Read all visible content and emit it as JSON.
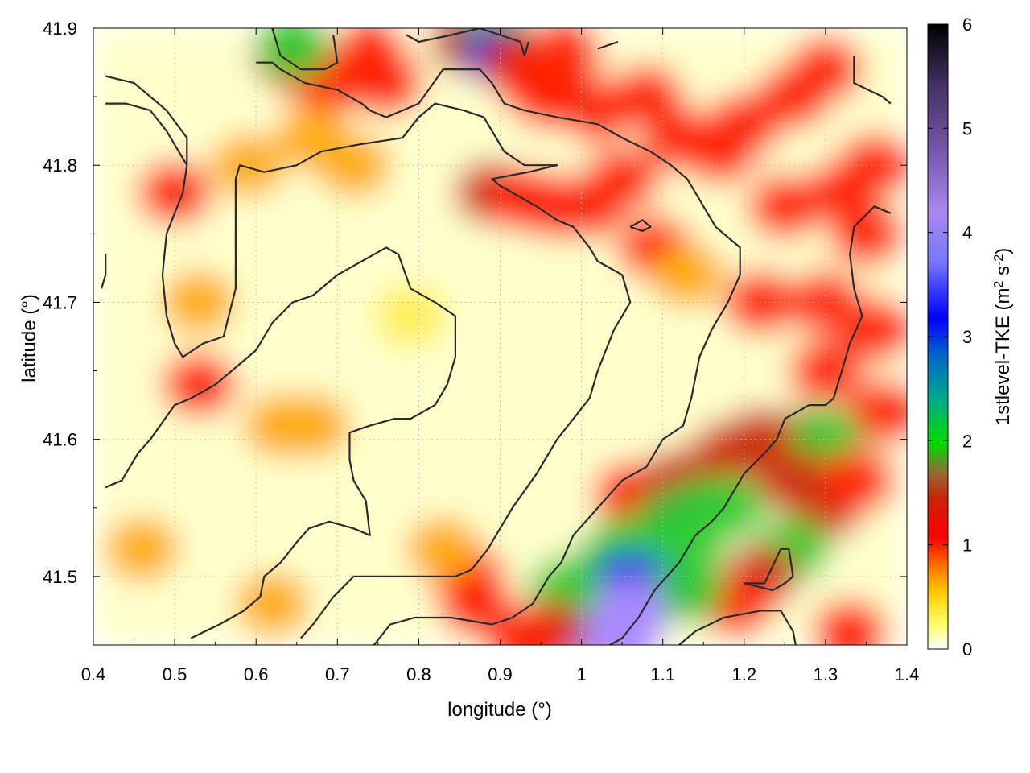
{
  "chart_data": {
    "type": "heatmap",
    "title": "",
    "xlabel": "longitude (°)",
    "ylabel": "latitude (°)",
    "xlim": [
      0.4,
      1.4
    ],
    "ylim": [
      41.45,
      41.9
    ],
    "x_ticks": [
      "0.4",
      "0.5",
      "0.6",
      "0.7",
      "0.8",
      "0.9",
      "1",
      "1.1",
      "1.2",
      "1.3",
      "1.4"
    ],
    "y_ticks": [
      "41.5",
      "41.6",
      "41.7",
      "41.8",
      "41.9"
    ],
    "colorbar": {
      "label_main": "1stlevel-TKE (m",
      "label_sup1": "2",
      "label_mid": " s",
      "label_sup2": "-2",
      "label_end": ")",
      "range": [
        0,
        6
      ],
      "ticks": [
        "0",
        "1",
        "2",
        "3",
        "4",
        "5",
        "6"
      ],
      "colors": [
        "#ffffff",
        "#ffff00",
        "#ff9900",
        "#ff0000",
        "#cc3300",
        "#996633",
        "#00cc00",
        "#00cc66",
        "#0066cc",
        "#0000ff",
        "#6666ff",
        "#aa88ff",
        "#7755aa",
        "#443366",
        "#000000"
      ]
    },
    "grid": true,
    "contours": [
      [
        [
          0.415,
          41.865
        ],
        [
          0.45,
          41.86
        ],
        [
          0.49,
          41.84
        ],
        [
          0.515,
          41.82
        ],
        [
          0.515,
          41.8
        ],
        [
          0.51,
          41.78
        ],
        [
          0.49,
          41.75
        ],
        [
          0.485,
          41.72
        ],
        [
          0.49,
          41.69
        ],
        [
          0.5,
          41.67
        ],
        [
          0.51,
          41.66
        ],
        [
          0.535,
          41.67
        ],
        [
          0.56,
          41.675
        ],
        [
          0.575,
          41.71
        ],
        [
          0.575,
          41.75
        ],
        [
          0.575,
          41.79
        ],
        [
          0.58,
          41.8
        ],
        [
          0.61,
          41.795
        ],
        [
          0.65,
          41.8
        ],
        [
          0.68,
          41.81
        ],
        [
          0.725,
          41.815
        ],
        [
          0.78,
          41.82
        ],
        [
          0.8,
          41.835
        ],
        [
          0.82,
          41.845
        ],
        [
          0.855,
          41.84
        ],
        [
          0.88,
          41.835
        ],
        [
          0.905,
          41.81
        ],
        [
          0.93,
          41.8
        ],
        [
          0.97,
          41.8
        ],
        [
          0.935,
          41.795
        ],
        [
          0.89,
          41.79
        ],
        [
          0.9,
          41.785
        ],
        [
          0.945,
          41.77
        ],
        [
          0.97,
          41.76
        ],
        [
          0.99,
          41.755
        ],
        [
          1.01,
          41.74
        ],
        [
          1.02,
          41.73
        ],
        [
          1.05,
          41.72
        ],
        [
          1.06,
          41.7
        ],
        [
          1.04,
          41.68
        ],
        [
          1.02,
          41.65
        ],
        [
          1.01,
          41.63
        ],
        [
          0.97,
          41.6
        ],
        [
          0.945,
          41.575
        ],
        [
          0.915,
          41.55
        ],
        [
          0.885,
          41.52
        ],
        [
          0.865,
          41.505
        ],
        [
          0.845,
          41.5
        ],
        [
          0.8,
          41.5
        ],
        [
          0.75,
          41.5
        ],
        [
          0.72,
          41.5
        ],
        [
          0.695,
          41.485
        ],
        [
          0.67,
          41.465
        ],
        [
          0.655,
          41.455
        ]
      ],
      [
        [
          0.415,
          41.845
        ],
        [
          0.44,
          41.845
        ],
        [
          0.47,
          41.84
        ],
        [
          0.49,
          41.825
        ],
        [
          0.515,
          41.8
        ]
      ],
      [
        [
          0.62,
          41.9
        ],
        [
          0.63,
          41.88
        ],
        [
          0.655,
          41.87
        ],
        [
          0.685,
          41.87
        ],
        [
          0.7,
          41.875
        ],
        [
          0.695,
          41.895
        ]
      ],
      [
        [
          0.785,
          41.895
        ],
        [
          0.8,
          41.89
        ],
        [
          0.84,
          41.895
        ],
        [
          0.875,
          41.9
        ],
        [
          0.9,
          41.895
        ],
        [
          0.925,
          41.89
        ],
        [
          0.93,
          41.88
        ],
        [
          0.935,
          41.89
        ]
      ],
      [
        [
          1.02,
          41.885
        ],
        [
          1.045,
          41.89
        ]
      ],
      [
        [
          0.6,
          41.875
        ],
        [
          0.62,
          41.875
        ],
        [
          0.63,
          41.87
        ],
        [
          0.645,
          41.865
        ],
        [
          0.66,
          41.86
        ],
        [
          0.7,
          41.855
        ],
        [
          0.73,
          41.845
        ],
        [
          0.74,
          41.84
        ],
        [
          0.76,
          41.835
        ],
        [
          0.78,
          41.84
        ],
        [
          0.8,
          41.845
        ],
        [
          0.83,
          41.87
        ],
        [
          0.855,
          41.87
        ],
        [
          0.875,
          41.87
        ],
        [
          0.89,
          41.86
        ],
        [
          0.905,
          41.845
        ],
        [
          0.93,
          41.84
        ],
        [
          0.97,
          41.835
        ],
        [
          1.02,
          41.83
        ],
        [
          1.05,
          41.82
        ],
        [
          1.085,
          41.81
        ],
        [
          1.11,
          41.8
        ],
        [
          1.13,
          41.79
        ],
        [
          1.15,
          41.77
        ],
        [
          1.165,
          41.755
        ],
        [
          1.195,
          41.74
        ],
        [
          1.195,
          41.72
        ],
        [
          1.18,
          41.7
        ],
        [
          1.16,
          41.68
        ],
        [
          1.145,
          41.66
        ],
        [
          1.135,
          41.63
        ],
        [
          1.125,
          41.61
        ],
        [
          1.1,
          41.6
        ],
        [
          1.08,
          41.58
        ],
        [
          1.05,
          41.57
        ],
        [
          1.02,
          41.55
        ],
        [
          0.99,
          41.53
        ],
        [
          0.975,
          41.51
        ],
        [
          0.96,
          41.5
        ],
        [
          0.94,
          41.48
        ],
        [
          0.915,
          41.47
        ],
        [
          0.89,
          41.465
        ],
        [
          0.84,
          41.47
        ],
        [
          0.795,
          41.47
        ],
        [
          0.765,
          41.465
        ],
        [
          0.745,
          41.45
        ]
      ],
      [
        [
          1.335,
          41.88
        ],
        [
          1.335,
          41.86
        ],
        [
          1.37,
          41.85
        ],
        [
          1.38,
          41.845
        ]
      ],
      [
        [
          0.415,
          41.565
        ],
        [
          0.435,
          41.57
        ],
        [
          0.445,
          41.58
        ],
        [
          0.455,
          41.59
        ],
        [
          0.47,
          41.6
        ],
        [
          0.5,
          41.625
        ],
        [
          0.52,
          41.63
        ],
        [
          0.55,
          41.64
        ],
        [
          0.57,
          41.65
        ],
        [
          0.6,
          41.665
        ],
        [
          0.62,
          41.685
        ],
        [
          0.645,
          41.7
        ],
        [
          0.67,
          41.705
        ],
        [
          0.7,
          41.72
        ],
        [
          0.73,
          41.73
        ],
        [
          0.76,
          41.74
        ],
        [
          0.775,
          41.735
        ],
        [
          0.79,
          41.71
        ],
        [
          0.82,
          41.7
        ],
        [
          0.845,
          41.69
        ],
        [
          0.845,
          41.66
        ],
        [
          0.835,
          41.64
        ],
        [
          0.82,
          41.625
        ],
        [
          0.79,
          41.615
        ],
        [
          0.77,
          41.615
        ],
        [
          0.74,
          41.61
        ],
        [
          0.715,
          41.605
        ],
        [
          0.715,
          41.585
        ],
        [
          0.72,
          41.57
        ],
        [
          0.735,
          41.555
        ],
        [
          0.74,
          41.53
        ],
        [
          0.72,
          41.535
        ],
        [
          0.69,
          41.54
        ],
        [
          0.665,
          41.535
        ],
        [
          0.65,
          41.525
        ],
        [
          0.63,
          41.51
        ],
        [
          0.61,
          41.5
        ],
        [
          0.605,
          41.485
        ],
        [
          0.585,
          41.475
        ],
        [
          0.57,
          41.47
        ],
        [
          0.555,
          41.465
        ],
        [
          0.52,
          41.455
        ]
      ],
      [
        [
          0.415,
          41.735
        ],
        [
          0.415,
          41.72
        ],
        [
          0.41,
          41.71
        ]
      ],
      [
        [
          1.06,
          41.755
        ],
        [
          1.075,
          41.76
        ],
        [
          1.085,
          41.755
        ],
        [
          1.075,
          41.752
        ],
        [
          1.06,
          41.755
        ]
      ],
      [
        [
          1.38,
          41.765
        ],
        [
          1.36,
          41.77
        ],
        [
          1.335,
          41.755
        ],
        [
          1.33,
          41.735
        ],
        [
          1.335,
          41.71
        ],
        [
          1.345,
          41.69
        ],
        [
          1.33,
          41.67
        ],
        [
          1.32,
          41.65
        ],
        [
          1.31,
          41.63
        ],
        [
          1.3,
          41.625
        ],
        [
          1.28,
          41.625
        ],
        [
          1.25,
          41.615
        ],
        [
          1.24,
          41.6
        ],
        [
          1.225,
          41.59
        ],
        [
          1.2,
          41.575
        ],
        [
          1.19,
          41.565
        ],
        [
          1.175,
          41.55
        ],
        [
          1.16,
          41.54
        ],
        [
          1.14,
          41.53
        ],
        [
          1.12,
          41.51
        ],
        [
          1.09,
          41.49
        ],
        [
          1.07,
          41.47
        ],
        [
          1.05,
          41.455
        ],
        [
          1.02,
          41.445
        ]
      ],
      [
        [
          1.2,
          41.495
        ],
        [
          1.225,
          41.495
        ],
        [
          1.245,
          41.52
        ],
        [
          1.255,
          41.52
        ],
        [
          1.26,
          41.5
        ],
        [
          1.25,
          41.495
        ],
        [
          1.235,
          41.49
        ],
        [
          1.2,
          41.495
        ]
      ],
      [
        [
          1.11,
          41.445
        ],
        [
          1.14,
          41.46
        ],
        [
          1.175,
          41.47
        ],
        [
          1.22,
          41.475
        ],
        [
          1.245,
          41.475
        ],
        [
          1.26,
          41.46
        ],
        [
          1.265,
          41.445
        ]
      ],
      [
        [
          1.32,
          41.445
        ],
        [
          1.325,
          41.45
        ]
      ]
    ],
    "tke_blobs": [
      {
        "x": 0.64,
        "y": 41.88,
        "v": 1.6
      },
      {
        "x": 0.66,
        "y": 41.87,
        "v": 1.2
      },
      {
        "x": 0.69,
        "y": 41.86,
        "v": 1.0
      },
      {
        "x": 0.645,
        "y": 41.885,
        "v": 2.0
      },
      {
        "x": 0.74,
        "y": 41.88,
        "v": 1.0
      },
      {
        "x": 0.76,
        "y": 41.86,
        "v": 0.8
      },
      {
        "x": 0.86,
        "y": 41.89,
        "v": 1.4
      },
      {
        "x": 0.895,
        "y": 41.89,
        "v": 2.2
      },
      {
        "x": 0.9,
        "y": 41.88,
        "v": 3.0
      },
      {
        "x": 0.92,
        "y": 41.875,
        "v": 1.6
      },
      {
        "x": 0.94,
        "y": 41.86,
        "v": 1.2
      },
      {
        "x": 0.96,
        "y": 41.85,
        "v": 1.0
      },
      {
        "x": 0.98,
        "y": 41.88,
        "v": 0.9
      },
      {
        "x": 1.02,
        "y": 41.84,
        "v": 1.1
      },
      {
        "x": 1.08,
        "y": 41.85,
        "v": 1.0
      },
      {
        "x": 1.12,
        "y": 41.82,
        "v": 1.1
      },
      {
        "x": 1.17,
        "y": 41.81,
        "v": 1.2
      },
      {
        "x": 1.2,
        "y": 41.83,
        "v": 1.0
      },
      {
        "x": 1.26,
        "y": 41.85,
        "v": 1.0
      },
      {
        "x": 1.3,
        "y": 41.87,
        "v": 1.1
      },
      {
        "x": 1.36,
        "y": 41.8,
        "v": 1.1
      },
      {
        "x": 1.35,
        "y": 41.75,
        "v": 1.2
      },
      {
        "x": 1.32,
        "y": 41.78,
        "v": 1.0
      },
      {
        "x": 1.25,
        "y": 41.77,
        "v": 0.9
      },
      {
        "x": 1.22,
        "y": 41.7,
        "v": 1.0
      },
      {
        "x": 1.3,
        "y": 41.7,
        "v": 1.2
      },
      {
        "x": 1.36,
        "y": 41.68,
        "v": 1.1
      },
      {
        "x": 1.3,
        "y": 41.65,
        "v": 1.0
      },
      {
        "x": 1.37,
        "y": 41.62,
        "v": 1.0
      },
      {
        "x": 0.89,
        "y": 41.78,
        "v": 1.3
      },
      {
        "x": 0.93,
        "y": 41.775,
        "v": 1.2
      },
      {
        "x": 0.97,
        "y": 41.77,
        "v": 1.0
      },
      {
        "x": 1.01,
        "y": 41.77,
        "v": 0.9
      },
      {
        "x": 1.09,
        "y": 41.74,
        "v": 0.9
      },
      {
        "x": 1.13,
        "y": 41.72,
        "v": 0.7
      },
      {
        "x": 1.05,
        "y": 41.79,
        "v": 0.8
      },
      {
        "x": 0.5,
        "y": 41.78,
        "v": 0.8
      },
      {
        "x": 0.53,
        "y": 41.7,
        "v": 0.7
      },
      {
        "x": 0.53,
        "y": 41.64,
        "v": 0.9
      },
      {
        "x": 0.59,
        "y": 41.8,
        "v": 0.6
      },
      {
        "x": 0.67,
        "y": 41.82,
        "v": 0.7
      },
      {
        "x": 0.72,
        "y": 41.8,
        "v": 0.6
      },
      {
        "x": 0.86,
        "y": 41.5,
        "v": 1.1
      },
      {
        "x": 0.87,
        "y": 41.48,
        "v": 1.0
      },
      {
        "x": 0.83,
        "y": 41.52,
        "v": 0.7
      },
      {
        "x": 1.06,
        "y": 41.56,
        "v": 1.2
      },
      {
        "x": 1.12,
        "y": 41.57,
        "v": 1.4
      },
      {
        "x": 1.18,
        "y": 41.59,
        "v": 1.3
      },
      {
        "x": 1.22,
        "y": 41.6,
        "v": 1.4
      },
      {
        "x": 1.27,
        "y": 41.6,
        "v": 1.5
      },
      {
        "x": 1.3,
        "y": 41.6,
        "v": 1.9
      },
      {
        "x": 1.26,
        "y": 41.57,
        "v": 1.4
      },
      {
        "x": 1.3,
        "y": 41.55,
        "v": 1.3
      },
      {
        "x": 1.34,
        "y": 41.57,
        "v": 1.2
      },
      {
        "x": 1.26,
        "y": 41.52,
        "v": 1.8
      },
      {
        "x": 1.22,
        "y": 41.5,
        "v": 1.3
      },
      {
        "x": 1.19,
        "y": 41.48,
        "v": 1.2
      },
      {
        "x": 1.11,
        "y": 41.54,
        "v": 2.2
      },
      {
        "x": 1.15,
        "y": 41.55,
        "v": 2.1
      },
      {
        "x": 1.18,
        "y": 41.55,
        "v": 1.9
      },
      {
        "x": 1.09,
        "y": 41.52,
        "v": 2.4
      },
      {
        "x": 1.13,
        "y": 41.52,
        "v": 2.0
      },
      {
        "x": 1.05,
        "y": 41.52,
        "v": 2.0
      },
      {
        "x": 1.02,
        "y": 41.5,
        "v": 2.3
      },
      {
        "x": 1.06,
        "y": 41.495,
        "v": 2.8
      },
      {
        "x": 1.1,
        "y": 41.49,
        "v": 3.0
      },
      {
        "x": 1.13,
        "y": 41.49,
        "v": 1.8
      },
      {
        "x": 1.01,
        "y": 41.47,
        "v": 4.0
      },
      {
        "x": 1.04,
        "y": 41.47,
        "v": 4.2
      },
      {
        "x": 1.06,
        "y": 41.475,
        "v": 3.5
      },
      {
        "x": 0.995,
        "y": 41.46,
        "v": 3.8
      },
      {
        "x": 1.05,
        "y": 41.455,
        "v": 3.6
      },
      {
        "x": 0.98,
        "y": 41.49,
        "v": 2.0
      },
      {
        "x": 0.96,
        "y": 41.46,
        "v": 1.5
      },
      {
        "x": 0.93,
        "y": 41.455,
        "v": 1.1
      },
      {
        "x": 0.63,
        "y": 41.61,
        "v": 0.6
      },
      {
        "x": 0.67,
        "y": 41.61,
        "v": 0.6
      },
      {
        "x": 0.62,
        "y": 41.48,
        "v": 0.6
      },
      {
        "x": 1.33,
        "y": 41.46,
        "v": 1.1
      },
      {
        "x": 0.46,
        "y": 41.52,
        "v": 0.5
      },
      {
        "x": 0.79,
        "y": 41.69,
        "v": 0.4
      }
    ]
  }
}
